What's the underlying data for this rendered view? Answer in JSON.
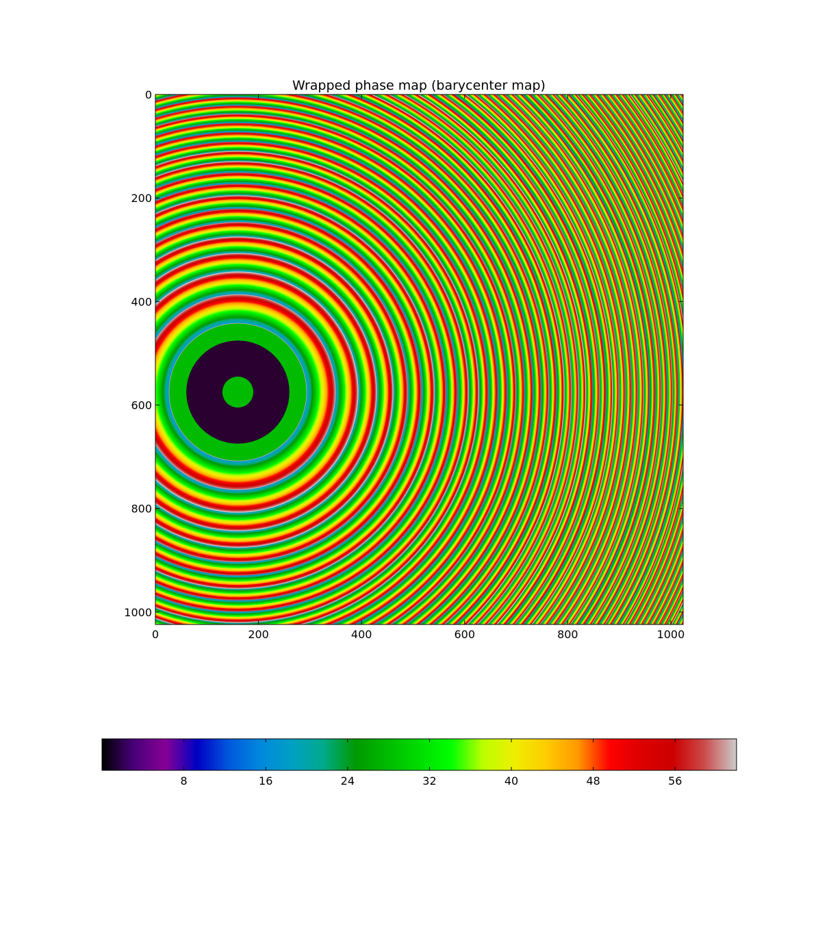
{
  "chart_data": {
    "type": "heatmap",
    "title": "Wrapped phase map (barycenter map)",
    "xlabel": "",
    "ylabel": "",
    "xlim": [
      0,
      1024
    ],
    "ylim": [
      1024,
      0
    ],
    "xticks": [
      0,
      200,
      400,
      600,
      800,
      1000
    ],
    "yticks": [
      0,
      200,
      400,
      600,
      800,
      1000
    ],
    "ring_center": [
      160,
      575
    ],
    "colormap": "nipy_spectral",
    "colorbar": {
      "range": [
        0,
        62
      ],
      "ticks": [
        8,
        16,
        24,
        32,
        40,
        48,
        56
      ],
      "orientation": "horizontal",
      "placement": "bottom"
    },
    "colormap_stops": [
      {
        "v": 0.0,
        "c": "#000000"
      },
      {
        "v": 0.05,
        "c": "#470079"
      },
      {
        "v": 0.1,
        "c": "#870096"
      },
      {
        "v": 0.15,
        "c": "#0000c4"
      },
      {
        "v": 0.2,
        "c": "#0058dd"
      },
      {
        "v": 0.25,
        "c": "#0088dd"
      },
      {
        "v": 0.3,
        "c": "#00a0c4"
      },
      {
        "v": 0.35,
        "c": "#00aa88"
      },
      {
        "v": 0.4,
        "c": "#009900"
      },
      {
        "v": 0.45,
        "c": "#00bb00"
      },
      {
        "v": 0.5,
        "c": "#00dd00"
      },
      {
        "v": 0.55,
        "c": "#00ff00"
      },
      {
        "v": 0.6,
        "c": "#bbff00"
      },
      {
        "v": 0.65,
        "c": "#eeee00"
      },
      {
        "v": 0.7,
        "c": "#ffcc00"
      },
      {
        "v": 0.75,
        "c": "#ff9900"
      },
      {
        "v": 0.8,
        "c": "#ff0000"
      },
      {
        "v": 0.85,
        "c": "#dd0000"
      },
      {
        "v": 0.9,
        "c": "#cc0000"
      },
      {
        "v": 0.95,
        "c": "#cc4c4c"
      },
      {
        "v": 1.0,
        "c": "#cccccc"
      }
    ]
  }
}
